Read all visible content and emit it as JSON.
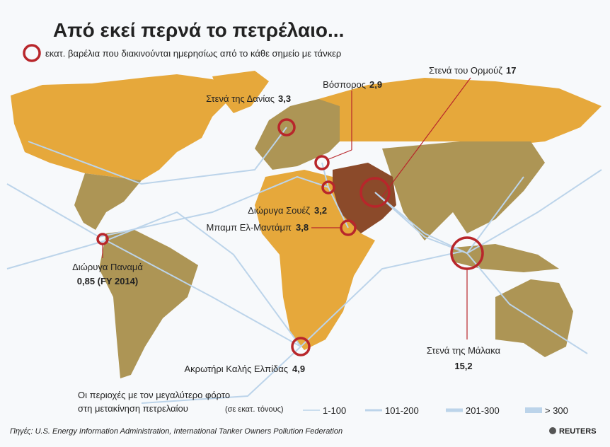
{
  "header": {
    "title": "Από εκεί περνά το πετρέλαιο...",
    "legend_note": "εκατ. βαρέλια που διακινούνται ημερησίως από το κάθε σημείο με τάνκερ"
  },
  "chokepoints": [
    {
      "name": "Στενά της Δανίας",
      "value": "3,3"
    },
    {
      "name": "Βόσπορος",
      "value": "2,9"
    },
    {
      "name": "Στενά του Ορμούζ",
      "value": "17"
    },
    {
      "name": "Διώρυγα Σουέζ",
      "value": "3,2"
    },
    {
      "name": "Μπαμπ Ελ-Μαντάμπ",
      "value": "3,8"
    },
    {
      "name": "Διώρυγα Παναμά",
      "value": "0,85 (FY 2014)"
    },
    {
      "name": "Ακρωτήρι Καλής Ελπίδας",
      "value": "4,9"
    },
    {
      "name": "Στενά της Μάλακα",
      "value": "15,2"
    }
  ],
  "footer": {
    "volume_legend_title": [
      "Οι περιοχές με τον μεγαλύτερο φόρτο",
      "στη μετακίνηση πετρελαίου"
    ],
    "unit": "(σε εκατ. τόνους)",
    "ranges": [
      "1-100",
      "101-200",
      "201-300",
      "> 300"
    ],
    "source": "Πηγές: U.S. Energy Information Administration, International Tanker Owners Pollution Federation",
    "logo": "REUTERS"
  }
}
